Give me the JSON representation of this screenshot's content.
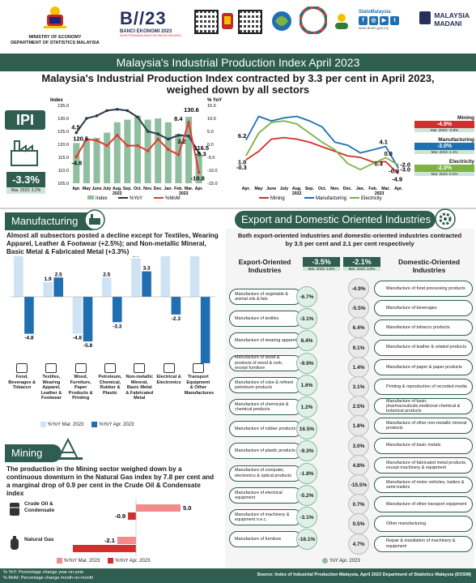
{
  "header": {
    "ministry": "MINISTRY OF ECONOMY",
    "department": "DEPARTMENT OF STATISTICS MALAYSIA",
    "banci_title": "BANCI EKONOMI 2023",
    "banci_sub": "DATA PENANDA ARAS EKONOMI NEGARA",
    "stats_brand": "StatsMalaysia",
    "website": "www.dosm.gov.my",
    "madani_1": "MALAYSIA",
    "madani_2": "MADANI"
  },
  "title": "Malaysia's Industrial Production Index April 2023",
  "headline": "Malaysia's Industrial Production Index contracted by 3.3 per cent in April 2023, weighed down by all sectors",
  "ipi": {
    "label": "IPI",
    "value": "-3.3%",
    "sub": "Mar. 2023: 3.2%"
  },
  "right_badges": [
    {
      "name": "Mining",
      "value": "-4.9%",
      "sub": "Mar. 2023: -0.9%",
      "color": "#d32f2f"
    },
    {
      "name": "Manufacturing",
      "value": "-3.0%",
      "sub": "Mar. 2023: 4.1%",
      "color": "#1f6fb2"
    },
    {
      "name": "Electricity",
      "value": "-2.0%",
      "sub": "Mar. 2023: 0.4%",
      "color": "#7cb342"
    }
  ],
  "chart_data": [
    {
      "type": "bar",
      "title": "",
      "ylabel_left": "Index",
      "ylabel_right": "% YoY",
      "categories": [
        "Apr.",
        "May",
        "June",
        "July",
        "Aug.",
        "Sep.",
        "Oct.",
        "Nov.",
        "Dec.",
        "Jan.",
        "Feb.",
        "Mar.",
        "Apr."
      ],
      "year_labels": [
        "2022",
        "2023"
      ],
      "ylim_left": [
        105.0,
        135.0
      ],
      "yticks_left": [
        "135.0",
        "130.0",
        "125.0",
        "120.0",
        "115.0",
        "110.0",
        "105.0"
      ],
      "ylim_right": [
        -15.0,
        15.0
      ],
      "yticks_right": [
        "15.0",
        "10.0",
        "5.0",
        "0.0",
        "-5.0",
        "-10.0",
        "-15.0"
      ],
      "series": [
        {
          "name": "Index",
          "kind": "bar",
          "values": [
            120.5,
            121.5,
            122.5,
            124.5,
            128.5,
            129.5,
            131.0,
            129.5,
            130.0,
            128.5,
            124.0,
            130.6,
            116.5
          ]
        },
        {
          "name": "%YoY",
          "kind": "line",
          "values": [
            4.5,
            10.0,
            11.0,
            13.0,
            13.5,
            13.0,
            10.5,
            5.0,
            4.0,
            2.0,
            3.5,
            3.2,
            -3.3
          ]
        },
        {
          "name": "%MoM",
          "kind": "line",
          "values": [
            -4.8,
            2.0,
            1.5,
            -0.5,
            3.5,
            -0.5,
            -0.5,
            -2.5,
            2.0,
            -2.0,
            -4.0,
            8.4,
            -10.8
          ]
        }
      ],
      "data_labels": {
        "first_index": "120.5",
        "first_yoy": "4.5",
        "first_mom": "-4.8",
        "last_index_prev": "130.6",
        "last_index": "116.5",
        "last_yoy_prev": "3.2",
        "last_yoy": "-3.3",
        "last_mom_prev": "8.4",
        "last_mom": "-10.8"
      },
      "legend": [
        "Index",
        "%YoY",
        "%MoM"
      ]
    },
    {
      "type": "line",
      "title": "",
      "categories": [
        "Apr.",
        "May",
        "June",
        "July",
        "Aug.",
        "Sep.",
        "Oct.",
        "Nov.",
        "Dec.",
        "Jan.",
        "Feb.",
        "Mar.",
        "Apr."
      ],
      "year_labels": [
        "2022",
        "2023"
      ],
      "series": [
        {
          "name": "Mining",
          "values": [
            -0.3,
            2.5,
            6.5,
            7.0,
            6.5,
            5.5,
            4.0,
            2.5,
            1.0,
            0.5,
            -1.0,
            -0.9,
            -4.9
          ]
        },
        {
          "name": "Manufacturing",
          "values": [
            6.2,
            14.0,
            12.5,
            13.5,
            14.0,
            12.5,
            10.5,
            5.5,
            4.5,
            2.0,
            3.0,
            4.1,
            -3.0
          ]
        },
        {
          "name": "Electricity",
          "values": [
            1.0,
            8.5,
            12.0,
            12.5,
            11.5,
            8.5,
            5.5,
            3.0,
            -1.5,
            -3.5,
            -1.5,
            0.4,
            -2.0
          ]
        }
      ],
      "data_labels": {
        "mining_first": "-0.3",
        "manufacturing_first": "6.2",
        "electricity_first": "1.0",
        "manufacturing_prev": "4.1",
        "electricity_prev": "0.4",
        "mining_prev": "-0.9",
        "manufacturing_last": "-3.0",
        "electricity_last": "-2.0",
        "mining_last": "-4.9",
        "extra": "0.8"
      },
      "legend": [
        "Mining",
        "Manufacturing",
        "Electricity"
      ]
    },
    {
      "type": "bar",
      "title": "",
      "categories": [
        "Food, Beverages & Tobacco",
        "Textiles, Wearing Apparel, Leather & Footwear",
        "Wood, Furniture, Paper Products & Printing",
        "Petroleum, Chemical, Rubber & Plastic",
        "Non-metallic Mineral, Basic Metal & Fabricated Metal",
        "Electrical & Electronics",
        "Transport Equipment & Other Manufactures"
      ],
      "series": [
        {
          "name": "%YoY Mar. 2023",
          "values": [
            7.6,
            1.9,
            -4.8,
            2.5,
            5.0,
            5.5,
            6.4
          ]
        },
        {
          "name": "%YoY Apr. 2023",
          "values": [
            -4.8,
            2.5,
            -5.8,
            -3.3,
            3.3,
            -2.3,
            -9.0
          ]
        }
      ],
      "legend": [
        "%YoY Mar. 2023",
        "%YoY Apr. 2023"
      ]
    },
    {
      "type": "bar",
      "title": "",
      "categories": [
        "Crude Oil & Condensate",
        "Natural Gas"
      ],
      "series": [
        {
          "name": "%YoY Mar. 2023",
          "values": [
            5.0,
            -2.1
          ]
        },
        {
          "name": "%YoY Apr. 2023",
          "values": [
            -0.9,
            -7.8
          ]
        }
      ],
      "legend": [
        "%YoY Mar. 2023",
        "%YoY Apr. 2023"
      ]
    }
  ],
  "manufacturing": {
    "head": "Manufacturing",
    "text": "Almost all subsectors posted a decline except for Textiles, Wearing Apparel, Leather & Footwear (+2.5%); and Non-metallic Mineral, Basic Metal & Fabricated Metal (+3.3%)",
    "categories": [
      "Food, Beverages & Tobacco",
      "Textiles, Wearing Apparel, Leather & Footwear",
      "Wood, Furniture, Paper Products & Printing",
      "Petroleum, Chemical, Rubber & Plastic",
      "Non-metallic Mineral, Basic Metal & Fabricated Metal",
      "Electrical & Electronics",
      "Transport Equipment & Other Manufactures"
    ],
    "legend_mar": "%YoY Mar. 2023",
    "legend_apr": "%YoY Apr. 2023"
  },
  "mining": {
    "head": "Mining",
    "text": "The production in the Mining sector weighed down by a continuous downturn in the Natural Gas index by 7.8 per cent and a marginal drop of 0.9 per cent in the Crude Oil & Condensate index",
    "crude": "Crude Oil & Condensate",
    "gas": "Natural Gas",
    "legend_mar": "%YoY Mar. 2023",
    "legend_apr": "%YoY Apr. 2023"
  },
  "export": {
    "head": "Export and Domestic Oriented Industries",
    "text": "Both export-oriented industries and domestic-oriented industries contracted by 3.5 per cent and 2.1 per cent respectively",
    "left_head": "Export-Oriented Industries",
    "right_head": "Domestic-Oriented Industries",
    "left_total": "-3.5%",
    "left_total_sub": "Mar. 2023: 3.6%",
    "right_total": "-2.1%",
    "right_total_sub": "Mar. 2023: 3.0%",
    "legend": "YoY Apr. 2023",
    "left": [
      {
        "label": "Manufacture of vegetable & animal oils & fats",
        "value": "-6.7%"
      },
      {
        "label": "Manufacture of textiles",
        "value": "-3.1%"
      },
      {
        "label": "Manufacture of wearing apparel",
        "value": "8.4%"
      },
      {
        "label": "Manufacture of wood & products of wood & cork, except furniture",
        "value": "-9.9%"
      },
      {
        "label": "Manufacture of coke & refined petroleum products",
        "value": "1.6%"
      },
      {
        "label": "Manufacture of chemicals & chemical products",
        "value": "1.2%"
      },
      {
        "label": "Manufacture of rubber products",
        "value": "16.5%"
      },
      {
        "label": "Manufacture of plastic products",
        "value": "-9.3%"
      },
      {
        "label": "Manufacture of computer, electronics & optical products",
        "value": "-1.8%"
      },
      {
        "label": "Manufacture of electrical equipment",
        "value": "-5.2%"
      },
      {
        "label": "Manufacture of machinery & equipment n.e.c.",
        "value": "-3.1%"
      },
      {
        "label": "Manufacture of furniture",
        "value": "-16.1%"
      }
    ],
    "right": [
      {
        "label": "Manufacture of food processing products",
        "value": "-4.9%"
      },
      {
        "label": "Manufacture of beverages",
        "value": "-5.5%"
      },
      {
        "label": "Manufacture of tobacco products",
        "value": "6.4%"
      },
      {
        "label": "Manufacture of leather & related products",
        "value": "9.1%"
      },
      {
        "label": "Manufacture of paper & paper products",
        "value": "1.4%"
      },
      {
        "label": "Printing & reproduction of recorded media",
        "value": "3.1%"
      },
      {
        "label": "Manufacture of basic pharmaceuticals,medicinal chemical & botanical products",
        "value": "2.5%"
      },
      {
        "label": "Manufacture of other non-metallic mineral products",
        "value": "1.8%"
      },
      {
        "label": "Manufacture of basic metals",
        "value": "3.0%"
      },
      {
        "label": "Manufacture of fabricated metal products, except machinery & equipment",
        "value": "4.8%"
      },
      {
        "label": "Manufacture of motor vehicles, trailers & semi-trailers",
        "value": "-15.5%"
      },
      {
        "label": "Manufacture of other transport equipment",
        "value": "0.7%"
      },
      {
        "label": "Other manufacturing",
        "value": "0.5%"
      },
      {
        "label": "Repair & installation of machinery & equipment",
        "value": "4.7%"
      }
    ]
  },
  "footer": {
    "note1": "% YoY: Percentage change year-on-year",
    "note2": "% MoM: Percentage change month-on-month",
    "source": "Source: Index of Industrial Production Malaysia, April 2023 Department of Statistics Malaysia (DOSM)"
  },
  "colors": {
    "primary": "#2f5d4f",
    "bar_green": "#8fbf9f",
    "yoy_line": "#2b3b4a",
    "mom_line": "#e53935",
    "mar_bar": "#cfe3f5",
    "apr_bar": "#1f6fb2",
    "mining_mar": "#f28b8b",
    "mining_apr": "#d32f2f"
  },
  "icons": [
    "crest-icon",
    "qr-icon",
    "factory-icon",
    "oil-rig-icon",
    "gear-icon"
  ]
}
